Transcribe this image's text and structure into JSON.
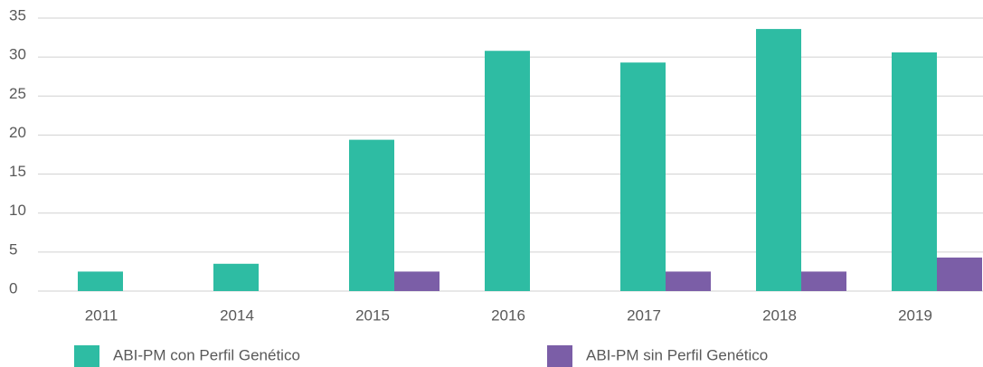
{
  "chart_data": {
    "type": "bar",
    "categories": [
      "2011",
      "2014",
      "2015",
      "2016",
      "2017",
      "2018",
      "2019"
    ],
    "series": [
      {
        "name": "ABI-PM con Perfil Genético",
        "color": "#2ebca3",
        "values": [
          2.5,
          3.5,
          19.4,
          30.8,
          29.3,
          33.6,
          30.6
        ]
      },
      {
        "name": "ABI-PM sin Perfil Genético",
        "color": "#7b5ea7",
        "values": [
          null,
          null,
          2.5,
          null,
          2.5,
          2.5,
          4.3
        ]
      }
    ],
    "ylim": [
      0,
      35
    ],
    "yticks": [
      0,
      5,
      10,
      15,
      20,
      25,
      30,
      35
    ],
    "grid": true,
    "legend": "bottom"
  }
}
